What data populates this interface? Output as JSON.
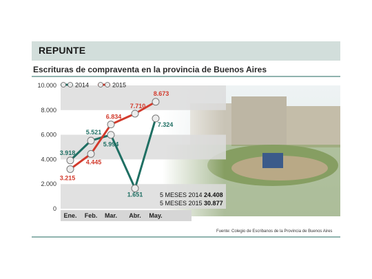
{
  "header": {
    "title": "REPUNTE"
  },
  "subtitle": "Escrituras de compraventa en la provincia de Buenos Aires",
  "source": "Fuente: Colegio de Escribanos de la Provincia de Buenos Aires",
  "totals": [
    {
      "label": "5 MESES 2014",
      "value": "24.408"
    },
    {
      "label": "5 MESES 2015",
      "value": "30.877"
    }
  ],
  "colors": {
    "s2014": "#1f6f63",
    "s2015": "#d23a2c",
    "band": "#dcdcdc",
    "header": "#d2dedb"
  },
  "chart_data": {
    "type": "line",
    "categories": [
      "Ene.",
      "Feb.",
      "Mar.",
      "Abr.",
      "May."
    ],
    "ylim": [
      0,
      10000
    ],
    "yticks": [
      0,
      2000,
      4000,
      6000,
      8000,
      10000
    ],
    "ytick_labels": [
      "0",
      "2.000",
      "4.000",
      "6.000",
      "8.000",
      "10.000"
    ],
    "legend": "top-left",
    "series": [
      {
        "name": "2014",
        "values": [
          3918,
          5521,
          5994,
          1651,
          7324
        ],
        "labels": [
          "3.918",
          "5.521",
          "5.994",
          "1.651",
          "7.324"
        ]
      },
      {
        "name": "2015",
        "values": [
          3215,
          4445,
          6834,
          7710,
          8673
        ],
        "labels": [
          "3.215",
          "4.445",
          "6.834",
          "7.710",
          "8.673"
        ]
      }
    ]
  }
}
